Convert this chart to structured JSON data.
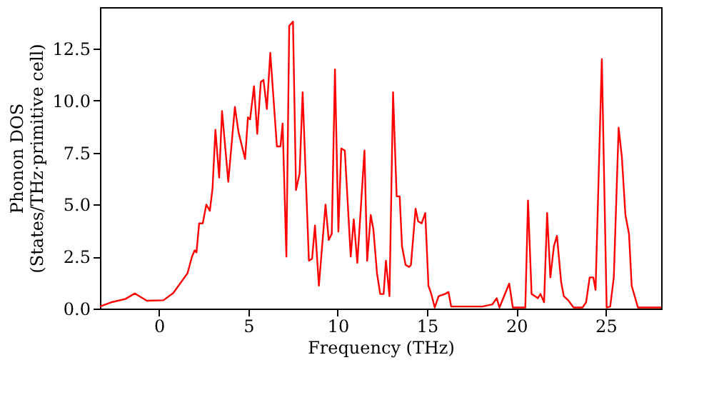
{
  "chart_data": {
    "type": "line",
    "xlabel": "Frequency (THz)",
    "ylabel": "Phonon DOS\n(States/THz·primitive cell)",
    "x": [
      -3.3,
      -2.68,
      -1.88,
      -1.35,
      -0.68,
      0.25,
      0.8,
      1.6,
      1.85,
      2.0,
      2.1,
      2.25,
      2.45,
      2.65,
      2.85,
      3.0,
      3.16,
      3.37,
      3.53,
      3.88,
      4.25,
      4.45,
      4.82,
      4.98,
      5.1,
      5.32,
      5.5,
      5.7,
      5.85,
      6.04,
      6.23,
      6.6,
      6.8,
      6.92,
      7.13,
      7.29,
      7.5,
      7.67,
      7.87,
      8.04,
      8.39,
      8.57,
      8.73,
      8.95,
      9.32,
      9.5,
      9.67,
      9.85,
      10.04,
      10.2,
      10.4,
      10.73,
      10.9,
      11.1,
      11.5,
      11.65,
      11.85,
      12.0,
      12.2,
      12.38,
      12.57,
      12.7,
      12.9,
      13.1,
      13.3,
      13.47,
      13.6,
      13.8,
      14.0,
      14.1,
      14.36,
      14.5,
      14.7,
      14.9,
      15.08,
      15.24,
      15.43,
      15.65,
      16.0,
      16.2,
      16.35,
      18.1,
      18.65,
      18.9,
      19.05,
      19.6,
      19.8,
      20.5,
      20.65,
      20.85,
      21.03,
      21.2,
      21.35,
      21.55,
      21.72,
      21.9,
      22.1,
      22.27,
      22.5,
      22.65,
      22.9,
      23.2,
      23.7,
      23.9,
      24.1,
      24.3,
      24.43,
      24.78,
      25.05,
      25.25,
      25.45,
      25.72,
      25.9,
      26.1,
      26.3,
      26.45,
      26.8,
      28.1
    ],
    "series": [
      {
        "color": "#ff0000",
        "values": [
          0.1,
          0.3,
          0.46,
          0.73,
          0.38,
          0.4,
          0.75,
          1.7,
          2.5,
          2.8,
          2.7,
          4.1,
          4.1,
          5.0,
          4.7,
          5.8,
          8.6,
          6.3,
          9.5,
          6.1,
          9.7,
          8.5,
          7.2,
          9.2,
          9.1,
          10.7,
          8.4,
          10.9,
          11.0,
          9.6,
          12.3,
          7.8,
          7.8,
          8.9,
          2.5,
          13.6,
          13.8,
          5.7,
          6.5,
          10.4,
          2.3,
          2.4,
          4.0,
          1.1,
          5.0,
          3.3,
          3.6,
          11.5,
          3.7,
          7.7,
          7.6,
          2.5,
          4.3,
          2.2,
          7.6,
          2.3,
          4.5,
          3.8,
          1.7,
          0.7,
          0.7,
          2.3,
          0.6,
          10.4,
          5.4,
          5.4,
          3.0,
          2.1,
          2.0,
          2.1,
          4.8,
          4.2,
          4.1,
          4.6,
          1.1,
          0.7,
          0.05,
          0.6,
          0.7,
          0.8,
          0.1,
          0.1,
          0.2,
          0.5,
          0.05,
          1.2,
          0.05,
          0.05,
          5.2,
          0.7,
          0.6,
          0.5,
          0.7,
          0.3,
          4.6,
          1.5,
          3.0,
          3.5,
          1.3,
          0.6,
          0.4,
          0.05,
          0.05,
          0.3,
          1.5,
          1.5,
          0.9,
          12.0,
          0.05,
          0.1,
          1.5,
          8.7,
          7.3,
          4.5,
          3.6,
          1.1,
          0.05,
          0.05
        ]
      }
    ],
    "xlim": [
      -3.3,
      28.1
    ],
    "xticks": [
      0,
      5,
      10,
      15,
      20,
      25
    ],
    "ylim": [
      0,
      14.5
    ],
    "yticks": [
      {
        "value": 0,
        "label": "0.0"
      },
      {
        "value": 2.5,
        "label": "2.5"
      },
      {
        "value": 5,
        "label": "5.0"
      },
      {
        "value": 7.5,
        "label": "7.5"
      },
      {
        "value": 10,
        "label": "10.0"
      },
      {
        "value": 12.5,
        "label": "12.5"
      }
    ],
    "grid": false,
    "legend": false
  }
}
